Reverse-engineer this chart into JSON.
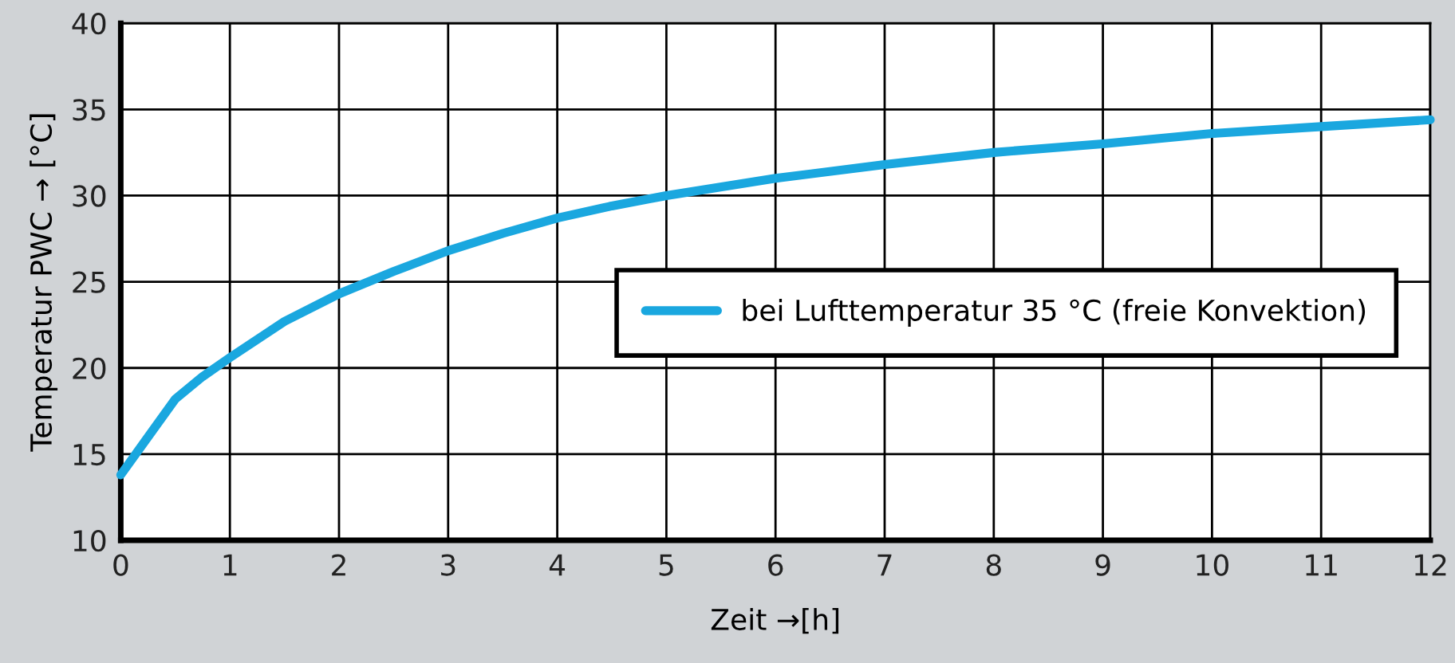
{
  "chart_data": {
    "type": "line",
    "xlabel": "Zeit →[h]",
    "ylabel": "Temperatur PWC → [°C]",
    "x": [
      0,
      0.25,
      0.5,
      0.75,
      1,
      1.5,
      2,
      2.5,
      3,
      3.5,
      4,
      4.5,
      5,
      6,
      7,
      8,
      9,
      10,
      11,
      12
    ],
    "series": [
      {
        "name": "bei Lufttemperatur 35 °C (freie Konvektion)",
        "color": "#1aa7df",
        "values": [
          13.8,
          16.0,
          18.2,
          19.5,
          20.6,
          22.7,
          24.3,
          25.6,
          26.8,
          27.8,
          28.7,
          29.4,
          30.0,
          31.0,
          31.8,
          32.5,
          33.0,
          33.6,
          34.0,
          34.4
        ]
      }
    ],
    "xlim": [
      0,
      12
    ],
    "xticks": [
      0,
      1,
      2,
      3,
      4,
      5,
      6,
      7,
      8,
      9,
      10,
      11,
      12
    ],
    "ylim": [
      10,
      40
    ],
    "yticks": [
      10,
      15,
      20,
      25,
      30,
      35,
      40
    ],
    "grid": true,
    "legend": "center right",
    "line_style": "solid",
    "marker": "none"
  }
}
